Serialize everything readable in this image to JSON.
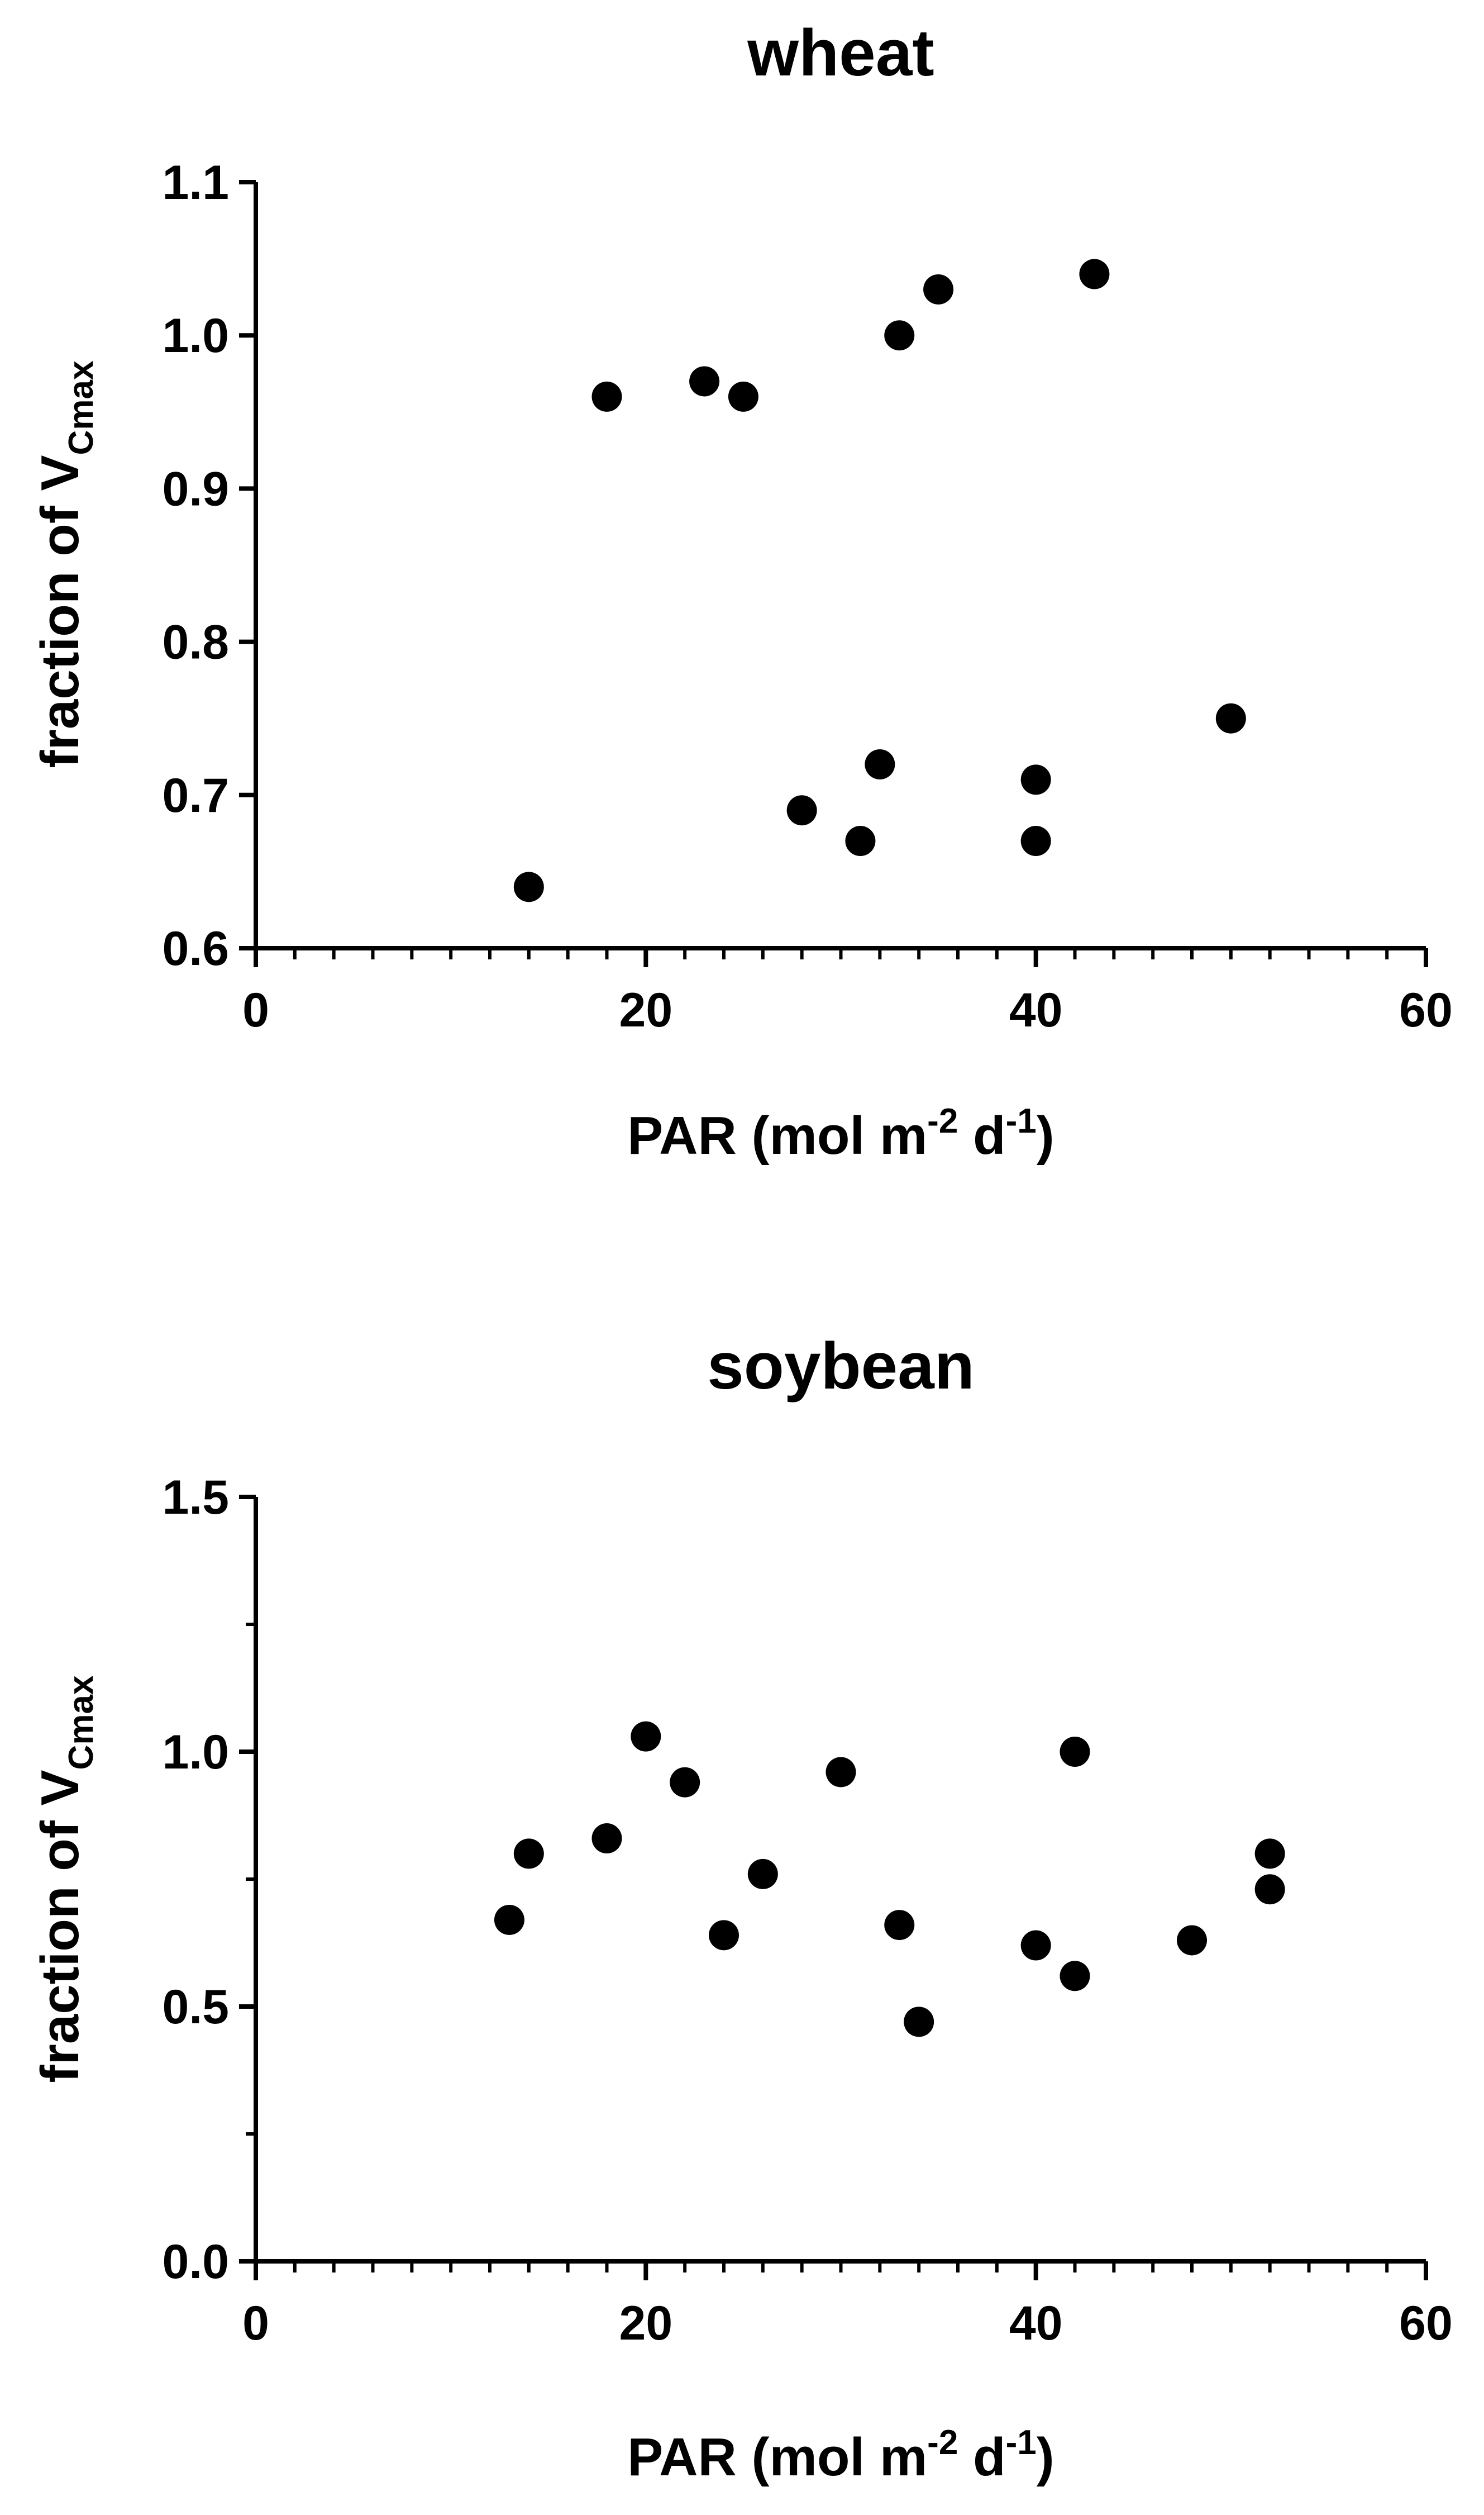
{
  "chart_data": [
    {
      "type": "scatter",
      "title": "wheat",
      "xlabel": "PAR (mol m-2 d-1)",
      "ylabel": "fraction of VCmax",
      "xlim": [
        0,
        60
      ],
      "ylim": [
        0.6,
        1.1
      ],
      "x_ticks": [
        "0",
        "20",
        "40",
        "60"
      ],
      "y_ticks": [
        "0.6",
        "0.7",
        "0.8",
        "0.9",
        "1.0",
        "1.1"
      ],
      "grid": false,
      "marker_color": "#000000",
      "points": [
        {
          "x": 14,
          "y": 0.64
        },
        {
          "x": 18,
          "y": 0.96
        },
        {
          "x": 23,
          "y": 0.97
        },
        {
          "x": 25,
          "y": 0.96
        },
        {
          "x": 28,
          "y": 0.69
        },
        {
          "x": 31,
          "y": 0.67
        },
        {
          "x": 32,
          "y": 0.72
        },
        {
          "x": 33,
          "y": 1.0
        },
        {
          "x": 35,
          "y": 1.03
        },
        {
          "x": 40,
          "y": 0.71
        },
        {
          "x": 40,
          "y": 0.67
        },
        {
          "x": 43,
          "y": 1.04
        },
        {
          "x": 50,
          "y": 0.75
        }
      ]
    },
    {
      "type": "scatter",
      "title": "soybean",
      "xlabel": "PAR (mol m-2 d-1)",
      "ylabel": "fraction of VCmax",
      "xlim": [
        0,
        60
      ],
      "ylim": [
        0.0,
        1.5
      ],
      "x_ticks": [
        "0",
        "20",
        "40",
        "60"
      ],
      "y_ticks": [
        "0.0",
        "0.5",
        "1.0",
        "1.5"
      ],
      "grid": false,
      "marker_color": "#000000",
      "points": [
        {
          "x": 13,
          "y": 0.67
        },
        {
          "x": 14,
          "y": 0.8
        },
        {
          "x": 18,
          "y": 0.83
        },
        {
          "x": 20,
          "y": 1.03
        },
        {
          "x": 22,
          "y": 0.94
        },
        {
          "x": 24,
          "y": 0.64
        },
        {
          "x": 26,
          "y": 0.76
        },
        {
          "x": 30,
          "y": 0.96
        },
        {
          "x": 33,
          "y": 0.66
        },
        {
          "x": 34,
          "y": 0.47
        },
        {
          "x": 40,
          "y": 0.62
        },
        {
          "x": 42,
          "y": 1.0
        },
        {
          "x": 42,
          "y": 0.56
        },
        {
          "x": 48,
          "y": 0.63
        },
        {
          "x": 52,
          "y": 0.8
        },
        {
          "x": 52,
          "y": 0.73
        }
      ]
    }
  ],
  "xlabel_parts": {
    "main": "PAR (mol m",
    "sup1": "-2",
    "mid": " d",
    "sup2": "-1",
    "end": ")"
  },
  "ylabel_parts": {
    "main": "fraction of V",
    "sub": "Cmax"
  }
}
